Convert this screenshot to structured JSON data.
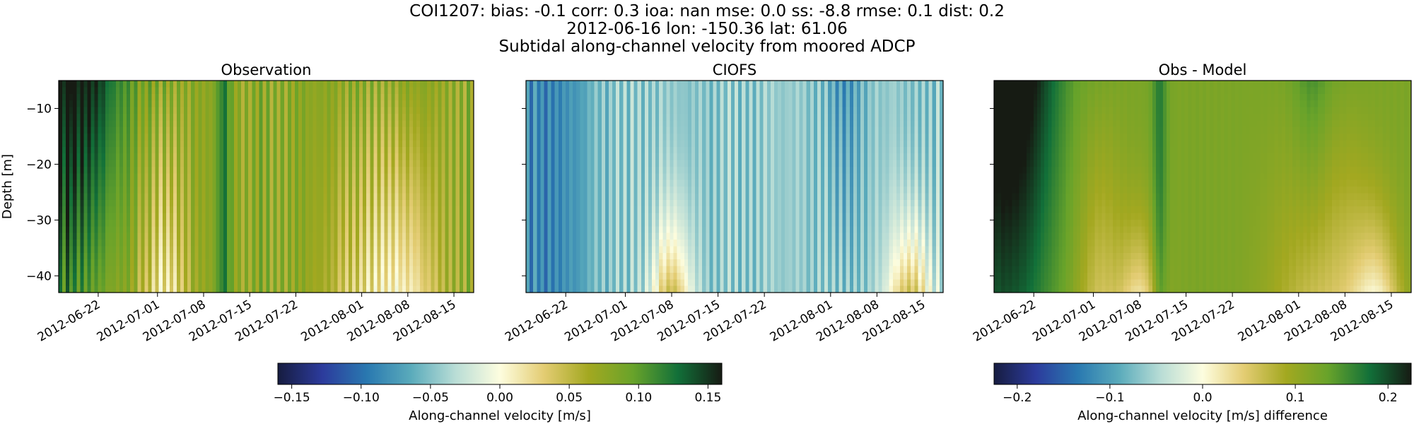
{
  "header": {
    "line1": "COI1207: bias: -0.1  corr: 0.3  ioa: nan  mse: 0.0  ss: -8.8  rmse: 0.1  dist: 0.2",
    "line2": "2012-06-16 lon: -150.36 lat: 61.06",
    "line3": "Subtidal along-channel velocity from moored ADCP"
  },
  "colors": {
    "cmap_stops": [
      "#161c40",
      "#2c3b9c",
      "#2978b0",
      "#5aabbb",
      "#b9ddd6",
      "#fdfddf",
      "#e3cc72",
      "#a3a820",
      "#68a32a",
      "#127039",
      "#161b13"
    ]
  },
  "chart_data": [
    {
      "type": "heatmap",
      "title": "Observation",
      "ylabel": "Depth [m]",
      "xlabel": "",
      "ylim": [
        -43,
        -5
      ],
      "yticks": [
        -10,
        -20,
        -30,
        -40
      ],
      "xlim": [
        "2012-06-16",
        "2012-08-18"
      ],
      "xticks": [
        "2012-06-22",
        "2012-07-01",
        "2012-07-08",
        "2012-07-15",
        "2012-07-22",
        "2012-08-01",
        "2012-08-08",
        "2012-08-15"
      ],
      "field": "observation",
      "colorbar": "velocity"
    },
    {
      "type": "heatmap",
      "title": "CIOFS",
      "ylabel": "",
      "xlabel": "",
      "ylim": [
        -43,
        -5
      ],
      "yticks": [
        -10,
        -20,
        -30,
        -40
      ],
      "xlim": [
        "2012-06-16",
        "2012-08-18"
      ],
      "xticks": [
        "2012-06-22",
        "2012-07-01",
        "2012-07-08",
        "2012-07-15",
        "2012-07-22",
        "2012-08-01",
        "2012-08-08",
        "2012-08-15"
      ],
      "field": "model",
      "colorbar": "velocity"
    },
    {
      "type": "heatmap",
      "title": "Obs - Model",
      "ylabel": "",
      "xlabel": "",
      "ylim": [
        -43,
        -5
      ],
      "yticks": [
        -10,
        -20,
        -30,
        -40
      ],
      "xlim": [
        "2012-06-16",
        "2012-08-18"
      ],
      "xticks": [
        "2012-06-22",
        "2012-07-01",
        "2012-07-08",
        "2012-07-15",
        "2012-07-22",
        "2012-08-01",
        "2012-08-08",
        "2012-08-15"
      ],
      "field": "difference",
      "colorbar": "difference"
    }
  ],
  "colorbars": {
    "velocity": {
      "label": "Along-channel velocity [m/s]",
      "range": [
        -0.16,
        0.16
      ],
      "ticks": [
        -0.15,
        -0.1,
        -0.05,
        0.0,
        0.05,
        0.1,
        0.15
      ],
      "tick_labels": [
        "−0.15",
        "−0.10",
        "−0.05",
        "0.00",
        "0.05",
        "0.10",
        "0.15"
      ]
    },
    "difference": {
      "label": "Along-channel velocity [m/s] difference",
      "range": [
        -0.225,
        0.225
      ],
      "ticks": [
        -0.2,
        -0.1,
        0.0,
        0.1,
        0.2
      ],
      "tick_labels": [
        "−0.2",
        "−0.1",
        "0.0",
        "0.1",
        "0.2"
      ]
    }
  }
}
